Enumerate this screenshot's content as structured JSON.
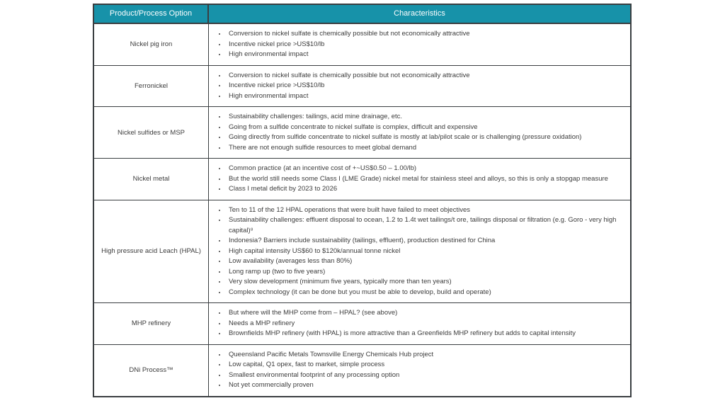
{
  "colors": {
    "header_bg": "#1792a9",
    "header_text": "#ffffff",
    "border": "#3a3e41",
    "body_text": "#3c3c3c"
  },
  "table": {
    "header": {
      "option": "Product/Process Option",
      "characteristics": "Characteristics"
    },
    "rows": [
      {
        "option": "Nickel pig iron",
        "bullets": [
          "Conversion to nickel sulfate is chemically possible but not economically attractive",
          "Incentive nickel price >US$10/lb",
          "High environmental impact"
        ]
      },
      {
        "option": "Ferronickel",
        "bullets": [
          "Conversion to nickel sulfate is chemically possible but not economically attractive",
          "Incentive nickel price >US$10/lb",
          "High environmental impact"
        ]
      },
      {
        "option": "Nickel sulfides or MSP",
        "bullets": [
          "Sustainability challenges: tailings, acid mine drainage, etc.",
          "Going from a sulfide concentrate to nickel sulfate is complex, difficult and expensive",
          "Going directly from sulfide concentrate to nickel sulfate is mostly at lab/pilot scale or is challenging (pressure oxidation)",
          "There are not enough sulfide resources to meet global demand"
        ]
      },
      {
        "option": "Nickel metal",
        "bullets": [
          "Common practice (at an incentive cost of +~US$0.50 – 1.00/lb)",
          "But the world still needs some Class I (LME Grade) nickel metal for stainless steel and alloys, so this is only a stopgap measure",
          "Class I metal deficit by 2023 to 2026"
        ]
      },
      {
        "option": "High pressure acid Leach (HPAL)",
        "bullets": [
          "Ten to 11 of the 12 HPAL operations that were built have failed to meet objectives",
          "Sustainability challenges: effluent disposal to ocean, 1.2 to 1.4t wet tailings/t ore, tailings disposal or filtration (e.g. Goro - very high capital)⁸",
          "Indonesia? Barriers include sustainability (tailings, effluent), production destined for China",
          "High capital intensity US$60 to $120k/annual tonne nickel",
          "Low availability (averages less than 80%)",
          "Long ramp up (two to five years)",
          "Very slow development (minimum five years, typically more than ten years)",
          "Complex technology (it can be done but you must be able to develop, build and operate)"
        ]
      },
      {
        "option": "MHP refinery",
        "bullets": [
          "But where will the MHP come from – HPAL? (see above)",
          "Needs a MHP refinery",
          "Brownfields MHP refinery (with HPAL) is more attractive than a Greenfields MHP refinery but adds to capital intensity"
        ]
      },
      {
        "option": "DNi Process™",
        "bullets": [
          "Queensland Pacific Metals Townsville Energy Chemicals Hub project",
          "Low capital, Q1 opex, fast to market, simple process",
          "Smallest environmental footprint of any processing option",
          "Not yet commercially proven"
        ]
      }
    ]
  }
}
